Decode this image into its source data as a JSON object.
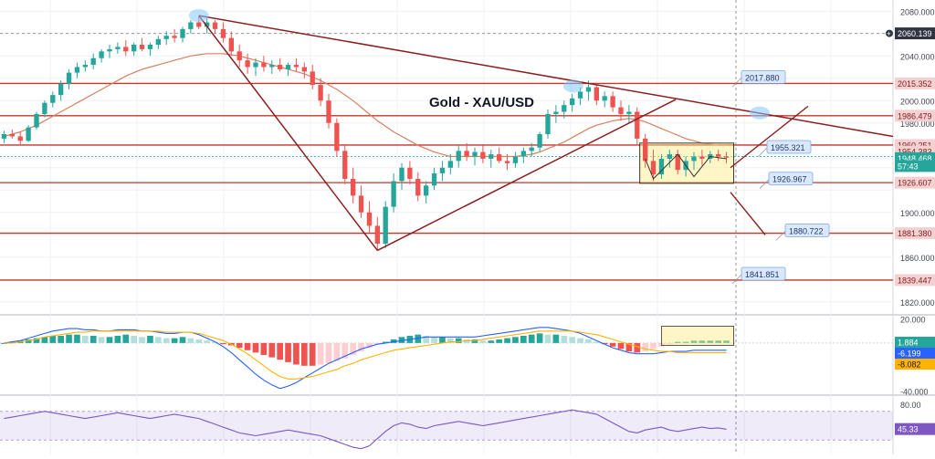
{
  "chart_data": [
    {
      "type": "candlestick",
      "panel": "price",
      "title": "Gold - XAU/USD",
      "ylim": [
        1810,
        2090
      ],
      "y_ticks": [
        "2080.000",
        "2040.000",
        "2000.000",
        "1980.000",
        "1900.000",
        "1860.000",
        "1820.000"
      ],
      "grid": true,
      "candles": [
        [
          1966,
          1973,
          1962,
          1970
        ],
        [
          1970,
          1974,
          1966,
          1968
        ],
        [
          1968,
          1972,
          1960,
          1964
        ],
        [
          1964,
          1978,
          1963,
          1976
        ],
        [
          1976,
          1990,
          1974,
          1988
        ],
        [
          1988,
          2000,
          1985,
          1998
        ],
        [
          1998,
          2008,
          1994,
          2005
        ],
        [
          2005,
          2018,
          2000,
          2015
        ],
        [
          2015,
          2028,
          2010,
          2025
        ],
        [
          2025,
          2034,
          2020,
          2030
        ],
        [
          2030,
          2036,
          2026,
          2032
        ],
        [
          2032,
          2042,
          2028,
          2038
        ],
        [
          2038,
          2046,
          2034,
          2044
        ],
        [
          2044,
          2050,
          2038,
          2046
        ],
        [
          2046,
          2052,
          2042,
          2048
        ],
        [
          2048,
          2054,
          2040,
          2044
        ],
        [
          2044,
          2052,
          2040,
          2050
        ],
        [
          2050,
          2056,
          2044,
          2046
        ],
        [
          2046,
          2052,
          2040,
          2050
        ],
        [
          2050,
          2058,
          2046,
          2055
        ],
        [
          2055,
          2062,
          2050,
          2058
        ],
        [
          2058,
          2064,
          2052,
          2056
        ],
        [
          2056,
          2066,
          2052,
          2064
        ],
        [
          2064,
          2072,
          2060,
          2070
        ],
        [
          2070,
          2076,
          2064,
          2066
        ],
        [
          2066,
          2074,
          2060,
          2070
        ],
        [
          2070,
          2072,
          2060,
          2064
        ],
        [
          2064,
          2070,
          2052,
          2056
        ],
        [
          2056,
          2062,
          2040,
          2044
        ],
        [
          2044,
          2050,
          2030,
          2036
        ],
        [
          2036,
          2042,
          2024,
          2030
        ],
        [
          2030,
          2038,
          2022,
          2034
        ],
        [
          2034,
          2040,
          2026,
          2030
        ],
        [
          2030,
          2036,
          2024,
          2032
        ],
        [
          2032,
          2038,
          2026,
          2028
        ],
        [
          2028,
          2034,
          2022,
          2032
        ],
        [
          2032,
          2038,
          2026,
          2030
        ],
        [
          2030,
          2034,
          2020,
          2026
        ],
        [
          2026,
          2032,
          2010,
          2014
        ],
        [
          2014,
          2020,
          1995,
          2000
        ],
        [
          2000,
          2006,
          1975,
          1980
        ],
        [
          1980,
          1984,
          1950,
          1955
        ],
        [
          1955,
          1960,
          1925,
          1930
        ],
        [
          1930,
          1940,
          1908,
          1915
        ],
        [
          1915,
          1924,
          1895,
          1900
        ],
        [
          1900,
          1910,
          1882,
          1888
        ],
        [
          1888,
          1896,
          1866,
          1872
        ],
        [
          1872,
          1910,
          1868,
          1905
        ],
        [
          1905,
          1935,
          1900,
          1928
        ],
        [
          1928,
          1944,
          1920,
          1940
        ],
        [
          1940,
          1946,
          1925,
          1930
        ],
        [
          1930,
          1936,
          1910,
          1915
        ],
        [
          1915,
          1928,
          1908,
          1924
        ],
        [
          1924,
          1940,
          1920,
          1935
        ],
        [
          1935,
          1946,
          1928,
          1940
        ],
        [
          1940,
          1952,
          1934,
          1946
        ],
        [
          1946,
          1960,
          1940,
          1955
        ],
        [
          1955,
          1962,
          1946,
          1950
        ],
        [
          1950,
          1958,
          1942,
          1954
        ],
        [
          1954,
          1960,
          1944,
          1948
        ],
        [
          1948,
          1956,
          1940,
          1952
        ],
        [
          1952,
          1958,
          1944,
          1946
        ],
        [
          1946,
          1952,
          1938,
          1944
        ],
        [
          1944,
          1954,
          1940,
          1950
        ],
        [
          1950,
          1958,
          1944,
          1955
        ],
        [
          1955,
          1962,
          1950,
          1958
        ],
        [
          1958,
          1972,
          1954,
          1970
        ],
        [
          1970,
          1992,
          1966,
          1988
        ],
        [
          1988,
          1996,
          1980,
          1990
        ],
        [
          1990,
          2000,
          1984,
          1996
        ],
        [
          1996,
          2006,
          1990,
          2002
        ],
        [
          2002,
          2012,
          1996,
          2008
        ],
        [
          2008,
          2018,
          2000,
          2012
        ],
        [
          2012,
          2016,
          1996,
          2000
        ],
        [
          2000,
          2008,
          1994,
          2004
        ],
        [
          2004,
          2008,
          1990,
          1994
        ],
        [
          1994,
          2000,
          1982,
          1988
        ],
        [
          1988,
          1996,
          1980,
          1990
        ],
        [
          1990,
          1994,
          1960,
          1966
        ],
        [
          1966,
          1970,
          1940,
          1946
        ],
        [
          1946,
          1956,
          1928,
          1934
        ],
        [
          1934,
          1952,
          1930,
          1948
        ],
        [
          1948,
          1956,
          1940,
          1952
        ],
        [
          1952,
          1956,
          1934,
          1938
        ],
        [
          1938,
          1950,
          1932,
          1946
        ],
        [
          1946,
          1954,
          1938,
          1950
        ],
        [
          1950,
          1956,
          1942,
          1948
        ],
        [
          1948,
          1955,
          1944,
          1952
        ],
        [
          1952,
          1956,
          1946,
          1950
        ],
        [
          1950,
          1954,
          1944,
          1949
        ]
      ],
      "moving_average": [
        1968,
        1970,
        1972,
        1975,
        1978,
        1982,
        1986,
        1990,
        1994,
        1998,
        2002,
        2006,
        2010,
        2014,
        2018,
        2022,
        2025,
        2028,
        2030,
        2032,
        2034,
        2036,
        2038,
        2040,
        2041,
        2042,
        2042,
        2042,
        2041,
        2040,
        2038,
        2036,
        2034,
        2032,
        2030,
        2028,
        2026,
        2024,
        2021,
        2018,
        2014,
        2010,
        2005,
        2000,
        1994,
        1988,
        1982,
        1977,
        1972,
        1968,
        1964,
        1960,
        1957,
        1954,
        1952,
        1950,
        1950,
        1950,
        1950,
        1950,
        1950,
        1950,
        1950,
        1950,
        1951,
        1952,
        1954,
        1957,
        1960,
        1963,
        1967,
        1971,
        1975,
        1978,
        1980,
        1982,
        1983,
        1984,
        1983,
        1981,
        1978,
        1975,
        1972,
        1969,
        1966,
        1964,
        1962,
        1961,
        1960,
        1960
      ],
      "horizontal_levels": [
        {
          "label": "2015.352",
          "value": 2015.352
        },
        {
          "label": "1986.479",
          "value": 1986.479
        },
        {
          "label": "1960.251",
          "value": 1960.251
        },
        {
          "label": "1926.607",
          "value": 1926.607
        },
        {
          "label": "1881.380",
          "value": 1881.38
        },
        {
          "label": "1839.447",
          "value": 1839.447
        }
      ],
      "axis_badges": [
        {
          "label": "2060.139",
          "value": 2060.139,
          "color": "#2f3542"
        },
        {
          "label": "1954.383",
          "value": 1954.383,
          "color": "#f3d1d1"
        },
        {
          "label": "1948.468",
          "value": 1948.468,
          "color": "#26a69a"
        },
        {
          "label": "57:43",
          "value": 1941.5,
          "color": "#26a69a"
        }
      ],
      "annotations": [
        {
          "label": "2017.880",
          "value": 2017.88
        },
        {
          "label": "1955.321",
          "value": 1955.321
        },
        {
          "label": "1926.967",
          "value": 1926.967
        },
        {
          "label": "1880.722",
          "value": 1880.722
        },
        {
          "label": "1841.851",
          "value": 1841.851
        }
      ]
    },
    {
      "type": "macd",
      "panel": "macd",
      "ylim": [
        -42,
        22
      ],
      "y_ticks": [
        "20.000",
        "-40.000"
      ],
      "histogram": [
        0,
        1,
        2,
        3,
        4,
        5,
        6,
        6,
        7,
        7,
        6,
        6,
        5,
        5,
        6,
        7,
        6,
        5,
        6,
        5,
        4,
        4,
        5,
        4,
        3,
        2,
        1,
        -1,
        -2,
        -4,
        -6,
        -8,
        -10,
        -12,
        -14,
        -16,
        -18,
        -19,
        -19,
        -18,
        -17,
        -15,
        -13,
        -10,
        -7,
        -4,
        -1,
        1,
        3,
        5,
        6,
        7,
        6,
        5,
        5,
        4,
        4,
        3,
        3,
        2,
        2,
        3,
        4,
        5,
        6,
        7,
        8,
        7,
        7,
        6,
        5,
        4,
        3,
        1,
        -1,
        -3,
        -5,
        -7,
        -8,
        -7,
        -5,
        -3,
        -1,
        1,
        1,
        2,
        2,
        2,
        2,
        2
      ],
      "macd_line": [
        0,
        1,
        2,
        4,
        6,
        8,
        10,
        11,
        12,
        12,
        11,
        11,
        10,
        10,
        11,
        11,
        11,
        10,
        10,
        9,
        8,
        8,
        9,
        9,
        7,
        4,
        1,
        -3,
        -8,
        -14,
        -20,
        -26,
        -31,
        -35,
        -38,
        -36,
        -33,
        -29,
        -25,
        -21,
        -17,
        -14,
        -11,
        -8,
        -5,
        -3,
        -1,
        0,
        1,
        2,
        3,
        4,
        5,
        5,
        5,
        5,
        5,
        5,
        5,
        6,
        7,
        8,
        9,
        10,
        11,
        12,
        13,
        13,
        12,
        11,
        10,
        8,
        5,
        2,
        -1,
        -4,
        -6,
        -8,
        -9,
        -9,
        -9,
        -8,
        -7,
        -7,
        -7,
        -6,
        -6,
        -6,
        -6,
        -6
      ],
      "signal_line": [
        0,
        0,
        1,
        2,
        3,
        5,
        6,
        7,
        8,
        9,
        9,
        10,
        10,
        10,
        10,
        10,
        10,
        10,
        10,
        10,
        9,
        9,
        9,
        9,
        8,
        6,
        4,
        2,
        -1,
        -5,
        -9,
        -14,
        -19,
        -24,
        -28,
        -30,
        -30,
        -29,
        -28,
        -26,
        -24,
        -22,
        -19,
        -17,
        -14,
        -12,
        -10,
        -8,
        -6,
        -5,
        -4,
        -3,
        -2,
        -1,
        0,
        1,
        1,
        2,
        2,
        3,
        4,
        5,
        6,
        7,
        8,
        9,
        10,
        10,
        10,
        10,
        10,
        9,
        8,
        7,
        5,
        3,
        1,
        -1,
        -3,
        -5,
        -6,
        -7,
        -7,
        -8,
        -8,
        -8,
        -8,
        -8,
        -8,
        -8
      ],
      "axis_badges": [
        {
          "label": "1.884",
          "value": 1.884,
          "color": "#26a69a"
        },
        {
          "label": "-6.199",
          "value": -6.199,
          "color": "#2962ff"
        },
        {
          "label": "-8.082",
          "value": -8.082,
          "color": "#ffb300"
        }
      ]
    },
    {
      "type": "rsi",
      "panel": "rsi",
      "ylim": [
        10,
        90
      ],
      "y_ticks": [
        "80.00"
      ],
      "overbought": 70,
      "oversold": 30,
      "values": [
        60,
        62,
        64,
        66,
        68,
        70,
        68,
        66,
        64,
        62,
        60,
        62,
        64,
        66,
        68,
        66,
        64,
        62,
        60,
        62,
        64,
        66,
        64,
        62,
        60,
        56,
        52,
        48,
        44,
        40,
        38,
        36,
        38,
        40,
        42,
        44,
        42,
        40,
        38,
        36,
        32,
        28,
        24,
        20,
        18,
        22,
        32,
        42,
        50,
        54,
        52,
        48,
        46,
        50,
        52,
        54,
        56,
        54,
        52,
        50,
        52,
        54,
        56,
        58,
        60,
        62,
        64,
        66,
        68,
        70,
        72,
        70,
        68,
        66,
        60,
        54,
        48,
        42,
        40,
        44,
        46,
        48,
        44,
        42,
        44,
        46,
        48,
        46,
        47,
        45
      ],
      "axis_badges": [
        {
          "label": "45.33",
          "value": 45.33,
          "color": "#7e57c2"
        }
      ]
    }
  ]
}
